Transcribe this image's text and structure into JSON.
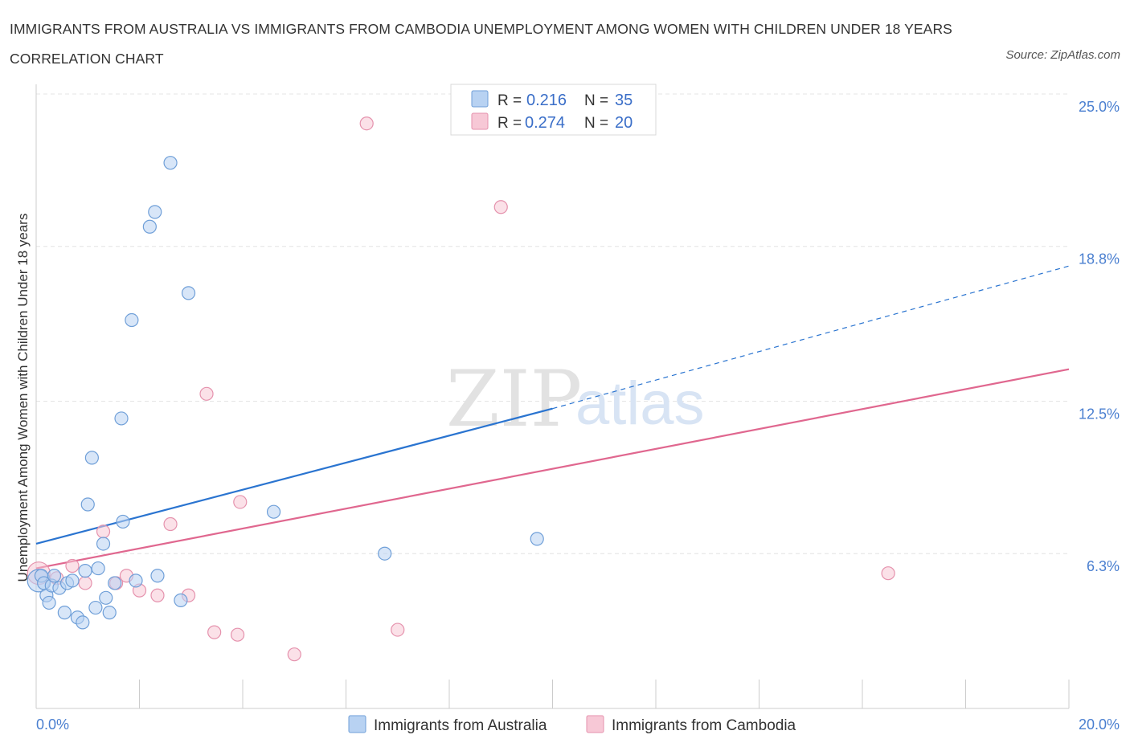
{
  "title": "IMMIGRANTS FROM AUSTRALIA VS IMMIGRANTS FROM CAMBODIA UNEMPLOYMENT AMONG WOMEN WITH CHILDREN UNDER 18 YEARS CORRELATION CHART",
  "source": "Source: ZipAtlas.com",
  "watermark": {
    "zip": "ZIP",
    "atlas": "atlas"
  },
  "legend": {
    "r_label": "R =",
    "n_label": "N =",
    "australia": {
      "r": "0.216",
      "n": "35"
    },
    "cambodia": {
      "r": "0.274",
      "n": "20"
    }
  },
  "colors": {
    "australia_fill": "#b8d2f2",
    "australia_stroke": "#6f9fd8",
    "australia_line": "#2a74d0",
    "cambodia_fill": "#f7c8d6",
    "cambodia_stroke": "#e592ad",
    "cambodia_line": "#e0678f",
    "tick_label": "#4a7fd0",
    "grid": "#e4e4e4"
  },
  "chart_data": {
    "type": "scatter",
    "title": "IMMIGRANTS FROM AUSTRALIA VS IMMIGRANTS FROM CAMBODIA UNEMPLOYMENT AMONG WOMEN WITH CHILDREN UNDER 18 YEARS CORRELATION CHART",
    "xlabel": "",
    "ylabel": "Unemployment Among Women with Children Under 18 years",
    "xlim": [
      0,
      20
    ],
    "ylim": [
      0,
      25
    ],
    "x_ticks": [
      "0.0%",
      "20.0%"
    ],
    "y_ticks": [
      {
        "value": 6.3,
        "label": "6.3%"
      },
      {
        "value": 12.5,
        "label": "12.5%"
      },
      {
        "value": 18.8,
        "label": "18.8%"
      },
      {
        "value": 25.0,
        "label": "25.0%"
      }
    ],
    "grid": true,
    "legend_position": "top-center",
    "series": [
      {
        "name": "Immigrants from Australia",
        "points": [
          [
            0.05,
            5.2
          ],
          [
            0.1,
            5.4
          ],
          [
            0.15,
            5.1
          ],
          [
            0.2,
            4.6
          ],
          [
            0.25,
            4.3
          ],
          [
            0.3,
            5.0
          ],
          [
            0.35,
            5.4
          ],
          [
            0.45,
            4.9
          ],
          [
            0.55,
            3.9
          ],
          [
            0.6,
            5.1
          ],
          [
            0.7,
            5.2
          ],
          [
            0.8,
            3.7
          ],
          [
            0.9,
            3.5
          ],
          [
            0.95,
            5.6
          ],
          [
            1.0,
            8.3
          ],
          [
            1.08,
            10.2
          ],
          [
            1.15,
            4.1
          ],
          [
            1.2,
            5.7
          ],
          [
            1.3,
            6.7
          ],
          [
            1.35,
            4.5
          ],
          [
            1.42,
            3.9
          ],
          [
            1.52,
            5.1
          ],
          [
            1.65,
            11.8
          ],
          [
            1.68,
            7.6
          ],
          [
            1.85,
            15.8
          ],
          [
            1.93,
            5.2
          ],
          [
            2.2,
            19.6
          ],
          [
            2.3,
            20.2
          ],
          [
            2.35,
            5.4
          ],
          [
            2.6,
            22.2
          ],
          [
            2.8,
            4.4
          ],
          [
            2.95,
            16.9
          ],
          [
            4.6,
            8.0
          ],
          [
            6.75,
            6.3
          ],
          [
            9.7,
            6.9
          ]
        ],
        "trend": {
          "x0": 0,
          "y0": 6.7,
          "x1": 10.0,
          "y1": 12.2,
          "dashed_to_x": 20,
          "dashed_to_y": 18.0
        }
      },
      {
        "name": "Immigrants from Cambodia",
        "points": [
          [
            0.05,
            5.5
          ],
          [
            0.4,
            5.3
          ],
          [
            0.7,
            5.8
          ],
          [
            0.95,
            5.1
          ],
          [
            1.3,
            7.2
          ],
          [
            1.55,
            5.1
          ],
          [
            1.75,
            5.4
          ],
          [
            2.0,
            4.8
          ],
          [
            2.35,
            4.6
          ],
          [
            2.6,
            7.5
          ],
          [
            2.95,
            4.6
          ],
          [
            3.3,
            12.8
          ],
          [
            3.45,
            3.1
          ],
          [
            3.9,
            3.0
          ],
          [
            3.95,
            8.4
          ],
          [
            5.0,
            2.2
          ],
          [
            6.4,
            23.8
          ],
          [
            7.0,
            3.2
          ],
          [
            9.0,
            20.4
          ],
          [
            16.5,
            5.5
          ]
        ],
        "trend": {
          "x0": 0,
          "y0": 5.7,
          "x1": 20,
          "y1": 13.8
        }
      }
    ]
  }
}
